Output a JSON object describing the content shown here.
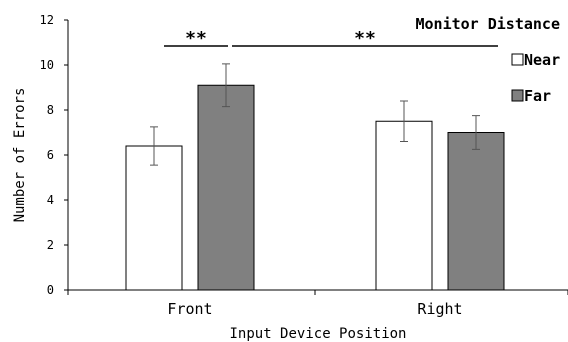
{
  "chart_data": {
    "type": "bar",
    "categories": [
      "Front",
      "Right"
    ],
    "series": [
      {
        "name": "Near",
        "values": [
          6.4,
          7.5
        ],
        "errors": [
          0.85,
          0.9
        ],
        "color": "#ffffff"
      },
      {
        "name": "Far",
        "values": [
          9.1,
          7.0
        ],
        "errors": [
          0.95,
          0.75
        ],
        "color": "#808080"
      }
    ],
    "xlabel": "Input Device Position",
    "ylabel": "Number of Errors",
    "ylim": [
      0,
      12
    ],
    "yticks": [
      "0",
      "2",
      "4",
      "6",
      "8",
      "10",
      "12"
    ],
    "legend_title": "Monitor Distance",
    "legend_position": "top-right",
    "grid": false,
    "significance": [
      {
        "label": "**",
        "from": "Front Near",
        "to": "Front Far"
      },
      {
        "label": "**",
        "from": "Front Far",
        "to": "Right Far"
      }
    ]
  }
}
